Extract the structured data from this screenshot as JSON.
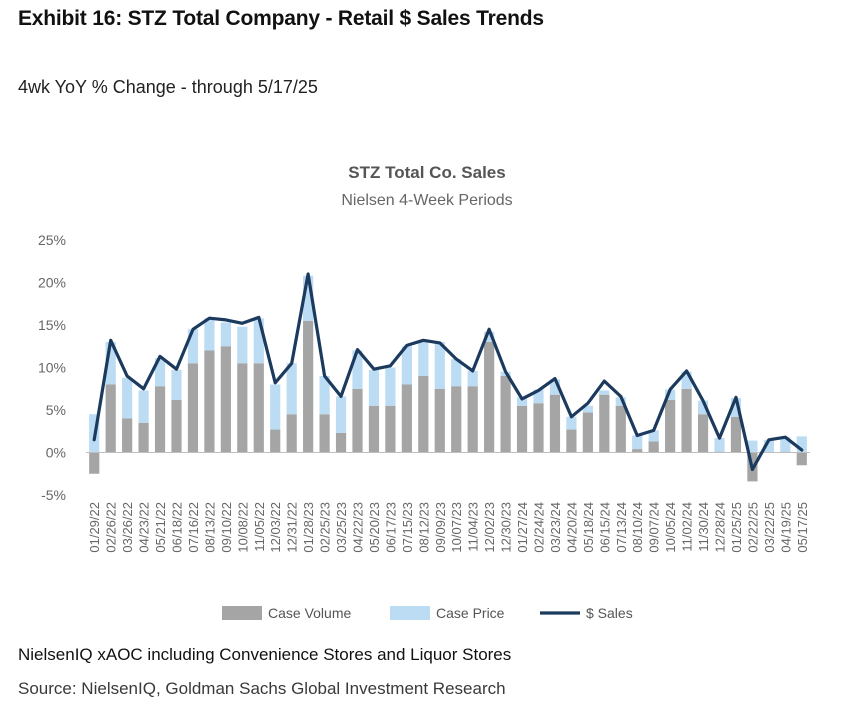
{
  "header": {
    "title": "Exhibit 16: STZ Total Company - Retail $ Sales Trends",
    "subtitle": "4wk YoY % Change - through 5/17/25"
  },
  "footer": {
    "note": "NielsenIQ xAOC including Convenience Stores and Liquor Stores",
    "source": "Source: NielsenIQ, Goldman Sachs Global Investment Research"
  },
  "colors": {
    "volume": "#a5a5a5",
    "price": "#bcdcf4",
    "sales": "#1b3a5e"
  },
  "chart_data": {
    "type": "bar",
    "title": "STZ Total Co. Sales",
    "subtitle": "Nielsen 4-Week Periods",
    "ylim": [
      -5,
      25
    ],
    "yticks": [
      25,
      20,
      15,
      10,
      5,
      0,
      -5
    ],
    "ytick_labels": [
      "25%",
      "20%",
      "15%",
      "10%",
      "5%",
      "0%",
      "-5%"
    ],
    "x_tick_labels": [
      "01/29/22",
      "02/26/22",
      "03/26/22",
      "04/23/22",
      "05/21/22",
      "06/18/22",
      "07/16/22",
      "08/13/22",
      "09/10/22",
      "10/08/22",
      "11/05/22",
      "12/03/22",
      "12/31/22",
      "01/28/23",
      "02/25/23",
      "03/25/23",
      "04/22/23",
      "05/20/23",
      "06/17/23",
      "07/15/23",
      "08/12/23",
      "09/09/23",
      "10/07/23",
      "11/04/23",
      "12/02/23",
      "12/30/23",
      "01/27/24",
      "02/24/24",
      "03/23/24",
      "04/20/24",
      "05/18/24",
      "06/15/24",
      "07/13/24",
      "08/10/24",
      "09/07/24",
      "10/05/24",
      "11/02/24",
      "11/30/24",
      "12/28/24",
      "01/25/25",
      "02/22/25",
      "03/22/25",
      "04/19/25",
      "05/17/25"
    ],
    "legend": [
      "Case Volume",
      "Case Price",
      "$ Sales"
    ],
    "legend_position": "bottom",
    "series": [
      {
        "name": "Case Volume",
        "type": "stacked-bar",
        "values": [
          -2.5,
          8.0,
          4.0,
          3.5,
          7.8,
          6.2,
          10.5,
          12.0,
          12.5,
          10.5,
          10.5,
          2.7,
          4.5,
          15.5,
          4.5,
          2.3,
          7.5,
          5.5,
          5.5,
          8.0,
          9.0,
          7.5,
          7.8,
          7.8,
          13.0,
          9.0,
          5.5,
          5.8,
          6.8,
          2.7,
          4.7,
          6.8,
          5.5,
          0.4,
          1.3,
          6.2,
          7.5,
          4.5,
          0.1,
          4.2,
          -3.4,
          0.0,
          0.1,
          -1.5
        ]
      },
      {
        "name": "Case Price",
        "type": "stacked-bar",
        "values": [
          4.5,
          5.0,
          4.8,
          3.8,
          3.3,
          3.5,
          4.0,
          3.8,
          2.8,
          4.3,
          5.3,
          5.3,
          6.0,
          5.3,
          4.5,
          4.3,
          4.5,
          4.2,
          4.5,
          4.5,
          4.0,
          5.5,
          3.2,
          1.8,
          1.2,
          0.5,
          1.0,
          1.6,
          1.8,
          1.5,
          0.8,
          0.5,
          1.0,
          1.6,
          1.3,
          1.2,
          2.0,
          1.6,
          1.6,
          2.2,
          1.4,
          1.5,
          1.7,
          1.9
        ]
      },
      {
        "name": "$ Sales",
        "type": "line",
        "values": [
          1.5,
          13.2,
          9.0,
          7.5,
          11.3,
          9.8,
          14.5,
          15.8,
          15.6,
          15.2,
          15.9,
          8.2,
          10.5,
          21.0,
          9.0,
          6.6,
          12.1,
          9.8,
          10.2,
          12.6,
          13.2,
          12.9,
          11.0,
          9.6,
          14.5,
          9.5,
          6.3,
          7.3,
          8.7,
          4.2,
          5.8,
          8.4,
          6.6,
          2.0,
          2.6,
          7.4,
          9.6,
          6.1,
          1.7,
          6.5,
          -2.0,
          1.5,
          1.8,
          0.3
        ]
      }
    ]
  }
}
